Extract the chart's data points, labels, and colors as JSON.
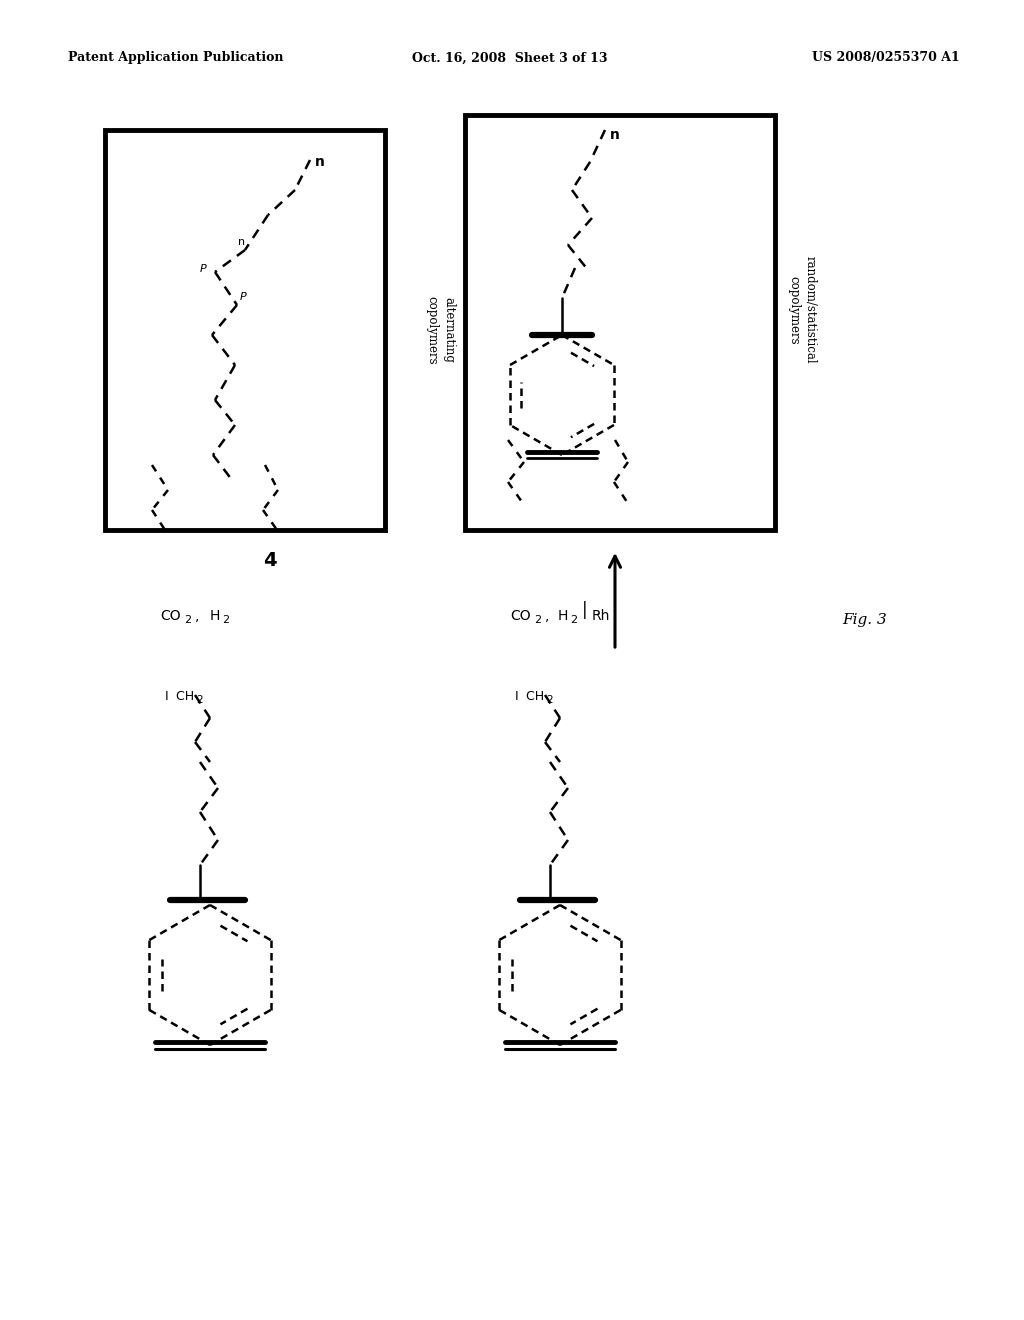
{
  "background_color": "#ffffff",
  "header_left": "Patent Application Publication",
  "header_mid": "Oct. 16, 2008  Sheet 3 of 13",
  "header_right": "US 2008/0255370 A1",
  "fig_label": "Fig. 3",
  "header_fontsize": 9,
  "fig_fontsize": 11,
  "label_4": "4",
  "label_alt": "alternating\ncopolymers",
  "label_rand": "random/statistical\ncopolymers",
  "reagent_left1": "CO",
  "reagent_left2": "2",
  "reagent_left3": ",  H",
  "reagent_left4": "2",
  "reagent_right1": "CO",
  "reagent_right2": "2",
  "reagent_right3": ",  H",
  "reagent_right4": "2",
  "reagent_right5": "  |  Rh"
}
